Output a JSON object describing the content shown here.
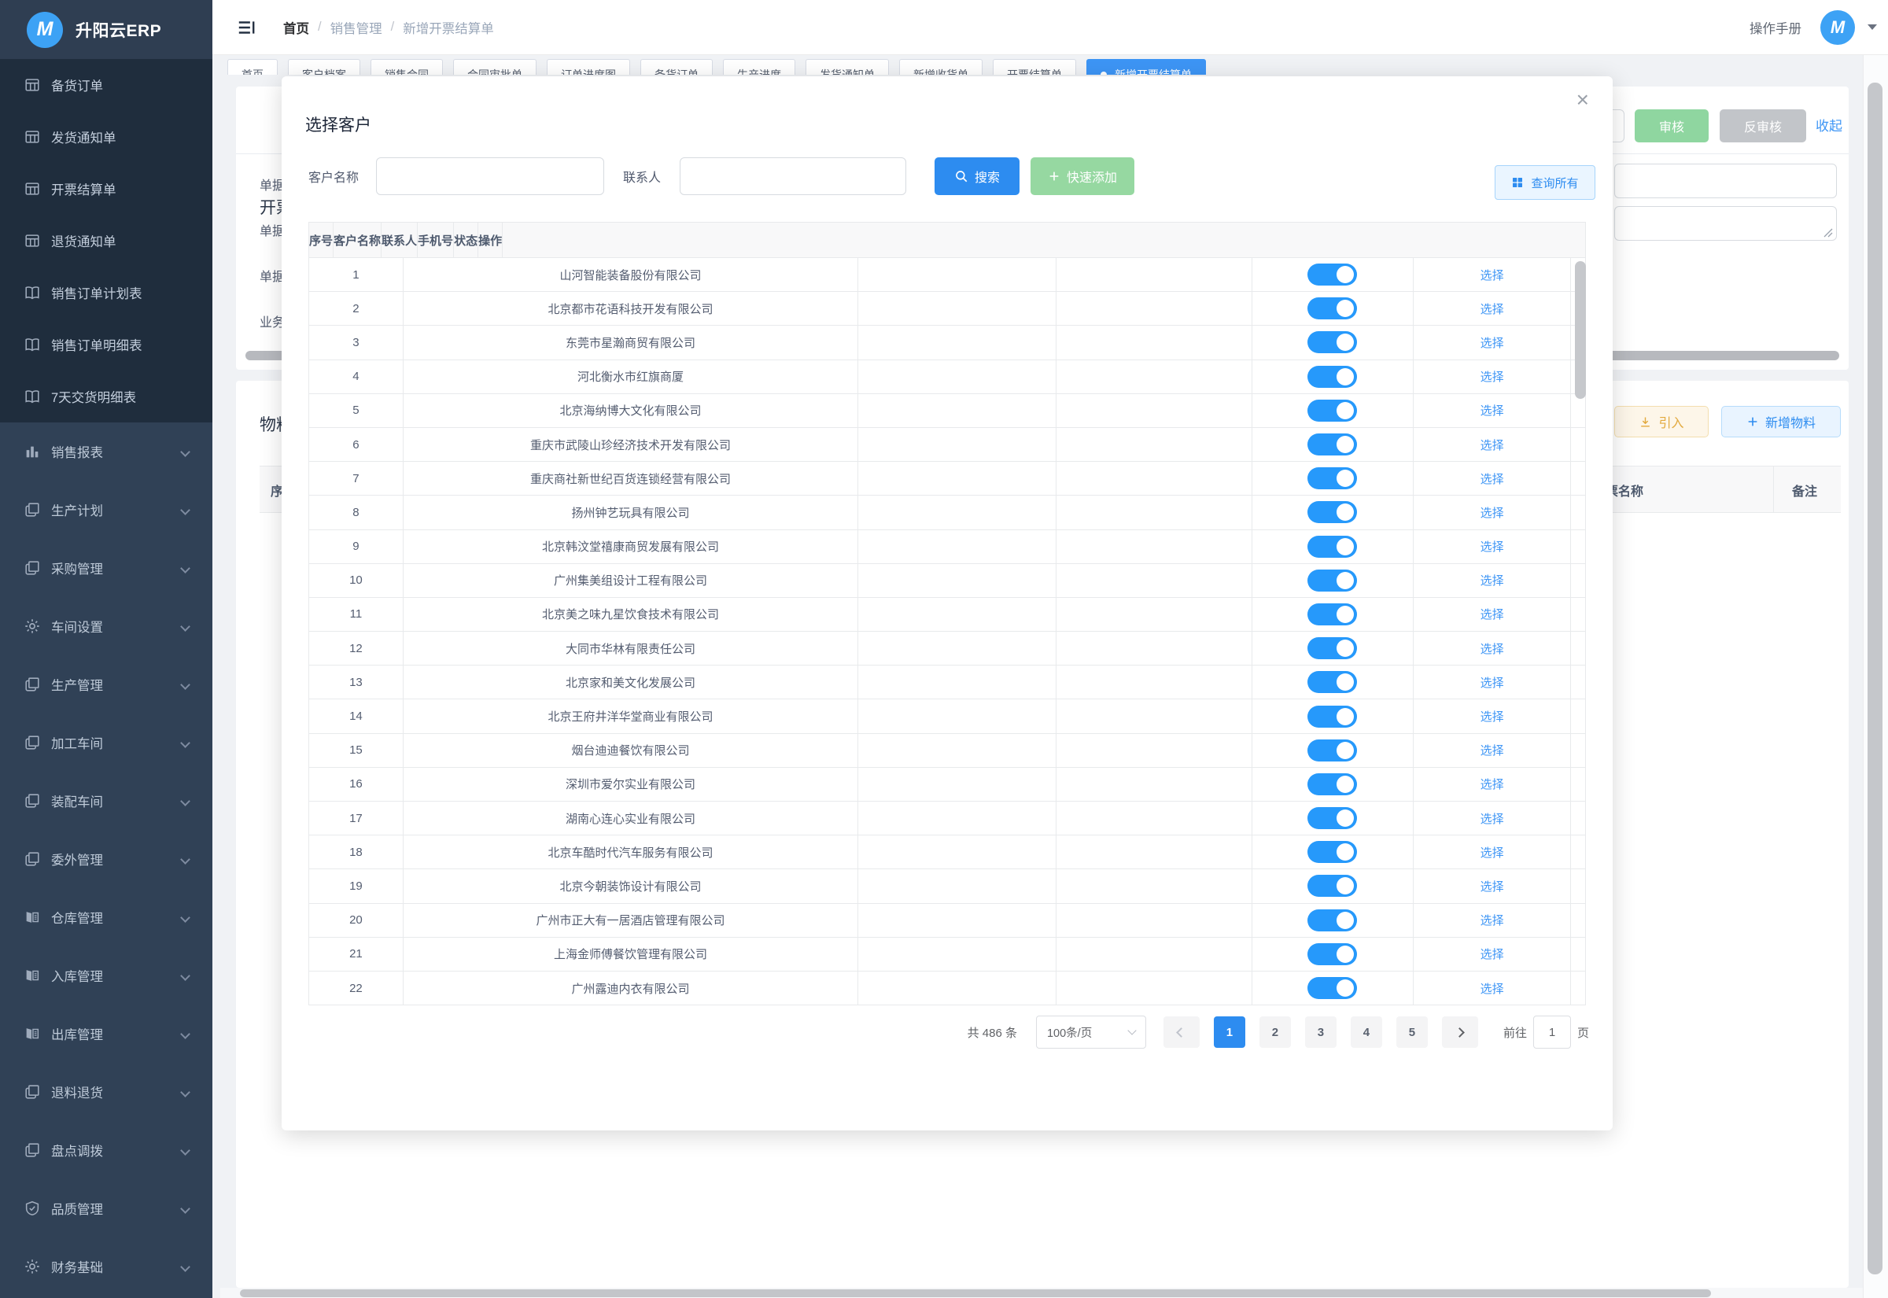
{
  "app": {
    "brand": "升阳云ERP",
    "brand_initial": "M"
  },
  "header": {
    "breadcrumb": [
      {
        "label": "首页",
        "sep": "",
        "muted": false
      },
      {
        "label": "销售管理",
        "sep": "/",
        "muted": true
      },
      {
        "label": "新增开票结算单",
        "sep": "/",
        "muted": true
      }
    ],
    "manual_label": "操作手册"
  },
  "sidebar": {
    "submenu_items": [
      {
        "label": "备货订单",
        "icon": "table-icon"
      },
      {
        "label": "发货通知单",
        "icon": "table-icon"
      },
      {
        "label": "开票结算单",
        "icon": "table-icon"
      },
      {
        "label": "退货通知单",
        "icon": "table-icon"
      },
      {
        "label": "销售订单计划表",
        "icon": "book-icon"
      },
      {
        "label": "销售订单明细表",
        "icon": "book-icon"
      },
      {
        "label": "7天交货明细表",
        "icon": "book-icon"
      }
    ],
    "groups": [
      {
        "label": "销售报表",
        "icon": "chart-icon"
      },
      {
        "label": "生产计划",
        "icon": "docs-icon"
      },
      {
        "label": "采购管理",
        "icon": "docs-icon"
      },
      {
        "label": "车间设置",
        "icon": "gear-icon"
      },
      {
        "label": "生产管理",
        "icon": "docs-icon"
      },
      {
        "label": "加工车间",
        "icon": "docs-icon"
      },
      {
        "label": "装配车间",
        "icon": "docs-icon"
      },
      {
        "label": "委外管理",
        "icon": "docs-icon"
      },
      {
        "label": "仓库管理",
        "icon": "ledger-icon"
      },
      {
        "label": "入库管理",
        "icon": "ledger-icon"
      },
      {
        "label": "出库管理",
        "icon": "ledger-icon"
      },
      {
        "label": "退料退货",
        "icon": "docs-icon"
      },
      {
        "label": "盘点调拨",
        "icon": "docs-icon"
      },
      {
        "label": "品质管理",
        "icon": "shield-icon"
      },
      {
        "label": "财务基础",
        "icon": "gear-icon"
      }
    ]
  },
  "tabs": [
    {
      "label": "首页",
      "active": false
    },
    {
      "label": "客户档案",
      "active": false
    },
    {
      "label": "销售合同",
      "active": false
    },
    {
      "label": "合同审批单",
      "active": false
    },
    {
      "label": "订单进度图",
      "active": false
    },
    {
      "label": "备货订单",
      "active": false
    },
    {
      "label": "生产进度",
      "active": false
    },
    {
      "label": "发货通知单",
      "active": false
    },
    {
      "label": "新增收货单",
      "active": false
    },
    {
      "label": "开票结算单",
      "active": false
    },
    {
      "label": "新增开票结算单",
      "active": true
    }
  ],
  "page": {
    "billing_card": {
      "title": "开票核算",
      "form_labels": [
        {
          "label": "单据编码"
        },
        {
          "label": "单据日期"
        },
        {
          "label": "单据状态"
        },
        {
          "label": "业务状态"
        }
      ],
      "audit_label": "审核",
      "unaudit_label": "反审核",
      "collapse_label": "收起"
    },
    "material_card": {
      "title": "物料信息",
      "import_label": "引入",
      "add_label": "新增物料",
      "col_seq": "序号",
      "col_invoice": "发票名称",
      "col_remark": "备注"
    }
  },
  "modal": {
    "title": "选择客户",
    "close_label": "×",
    "filters": {
      "name_label": "客户名称",
      "contact_label": "联系人",
      "search_label": "搜索",
      "quick_add_label": "快速添加",
      "query_all_label": "查询所有"
    },
    "table": {
      "headers": [
        "序号",
        "客户名称",
        "联系人",
        "手机号",
        "状态",
        "操作"
      ],
      "action_label": "选择",
      "rows": [
        {
          "no": "1",
          "name": "山河智能装备股份有限公司",
          "contact": "",
          "phone": "",
          "on": true
        },
        {
          "no": "2",
          "name": "北京都市花语科技开发有限公司",
          "contact": "",
          "phone": "",
          "on": true
        },
        {
          "no": "3",
          "name": "东莞市星瀚商贸有限公司",
          "contact": "",
          "phone": "",
          "on": true
        },
        {
          "no": "4",
          "name": "河北衡水市红旗商厦",
          "contact": "",
          "phone": "",
          "on": true
        },
        {
          "no": "5",
          "name": "北京海纳博大文化有限公司",
          "contact": "",
          "phone": "",
          "on": true
        },
        {
          "no": "6",
          "name": "重庆市武陵山珍经济技术开发有限公司",
          "contact": "",
          "phone": "",
          "on": true
        },
        {
          "no": "7",
          "name": "重庆商社新世纪百货连锁经营有限公司",
          "contact": "",
          "phone": "",
          "on": true
        },
        {
          "no": "8",
          "name": "扬州钟艺玩具有限公司",
          "contact": "",
          "phone": "",
          "on": true
        },
        {
          "no": "9",
          "name": "北京韩汶堂禧康商贸发展有限公司",
          "contact": "",
          "phone": "",
          "on": true
        },
        {
          "no": "10",
          "name": "广州集美组设计工程有限公司",
          "contact": "",
          "phone": "",
          "on": true
        },
        {
          "no": "11",
          "name": "北京美之味九星饮食技术有限公司",
          "contact": "",
          "phone": "",
          "on": true
        },
        {
          "no": "12",
          "name": "大同市华林有限责任公司",
          "contact": "",
          "phone": "",
          "on": true
        },
        {
          "no": "13",
          "name": "北京家和美文化发展公司",
          "contact": "",
          "phone": "",
          "on": true
        },
        {
          "no": "14",
          "name": "北京王府井洋华堂商业有限公司",
          "contact": "",
          "phone": "",
          "on": true
        },
        {
          "no": "15",
          "name": "烟台迪迪餐饮有限公司",
          "contact": "",
          "phone": "",
          "on": true
        },
        {
          "no": "16",
          "name": "深圳市爱尔实业有限公司",
          "contact": "",
          "phone": "",
          "on": true
        },
        {
          "no": "17",
          "name": "湖南心连心实业有限公司",
          "contact": "",
          "phone": "",
          "on": true
        },
        {
          "no": "18",
          "name": "北京车酷时代汽车服务有限公司",
          "contact": "",
          "phone": "",
          "on": true
        },
        {
          "no": "19",
          "name": "北京今朝装饰设计有限公司",
          "contact": "",
          "phone": "",
          "on": true
        },
        {
          "no": "20",
          "name": "广州市正大有一居酒店管理有限公司",
          "contact": "",
          "phone": "",
          "on": true
        },
        {
          "no": "21",
          "name": "上海金师傅餐饮管理有限公司",
          "contact": "",
          "phone": "",
          "on": true
        },
        {
          "no": "22",
          "name": "广州露迪内衣有限公司",
          "contact": "",
          "phone": "",
          "on": true
        }
      ]
    },
    "pagination": {
      "total": "共 486 条",
      "page_size": "100条/页",
      "pages": [
        {
          "label": "1",
          "active": true
        },
        {
          "label": "2",
          "active": false
        },
        {
          "label": "3",
          "active": false
        },
        {
          "label": "4",
          "active": false
        },
        {
          "label": "5",
          "active": false
        }
      ],
      "goto_label": "前往",
      "goto_value": "1",
      "unit_label": "页"
    }
  },
  "colors": {
    "accent": "#2d8cf0",
    "toggle_on": "#2699fb",
    "success_button": "#8fd6a0",
    "warning_button": "#e2a93d",
    "sidebar_bg": "#304156",
    "submenu_bg": "#1f2d3d"
  }
}
